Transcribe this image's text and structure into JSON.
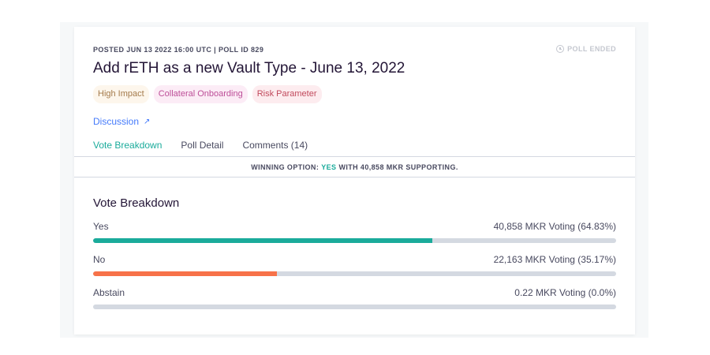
{
  "header": {
    "meta": "POSTED JUN 13 2022 16:00 UTC | POLL ID 829",
    "status": "POLL ENDED",
    "title": "Add rETH as a new Vault Type - June 13, 2022"
  },
  "tags": [
    {
      "label": "High Impact"
    },
    {
      "label": "Collateral Onboarding"
    },
    {
      "label": "Risk Parameter"
    }
  ],
  "discussion_label": "Discussion",
  "tabs": [
    {
      "label": "Vote Breakdown"
    },
    {
      "label": "Poll Detail"
    },
    {
      "label": "Comments (14)"
    }
  ],
  "winning": {
    "prefix": "WINNING OPTION:",
    "option": "YES",
    "suffix": "WITH 40,858 MKR SUPPORTING."
  },
  "breakdown": {
    "title": "Vote Breakdown",
    "options": [
      {
        "label": "Yes",
        "value": "40,858 MKR Voting (64.83%)",
        "fraction": 0.6483,
        "color": "#1aab9b"
      },
      {
        "label": "No",
        "value": "22,163 MKR Voting (35.17%)",
        "fraction": 0.3517,
        "color": "#f77249"
      },
      {
        "label": "Abstain",
        "value": "0.22 MKR Voting (0.0%)",
        "fraction": 0.0,
        "color": "#d4d9e1"
      }
    ]
  },
  "icons": {
    "status": "clock-icon",
    "discussion": "external-link-arrow-icon"
  }
}
